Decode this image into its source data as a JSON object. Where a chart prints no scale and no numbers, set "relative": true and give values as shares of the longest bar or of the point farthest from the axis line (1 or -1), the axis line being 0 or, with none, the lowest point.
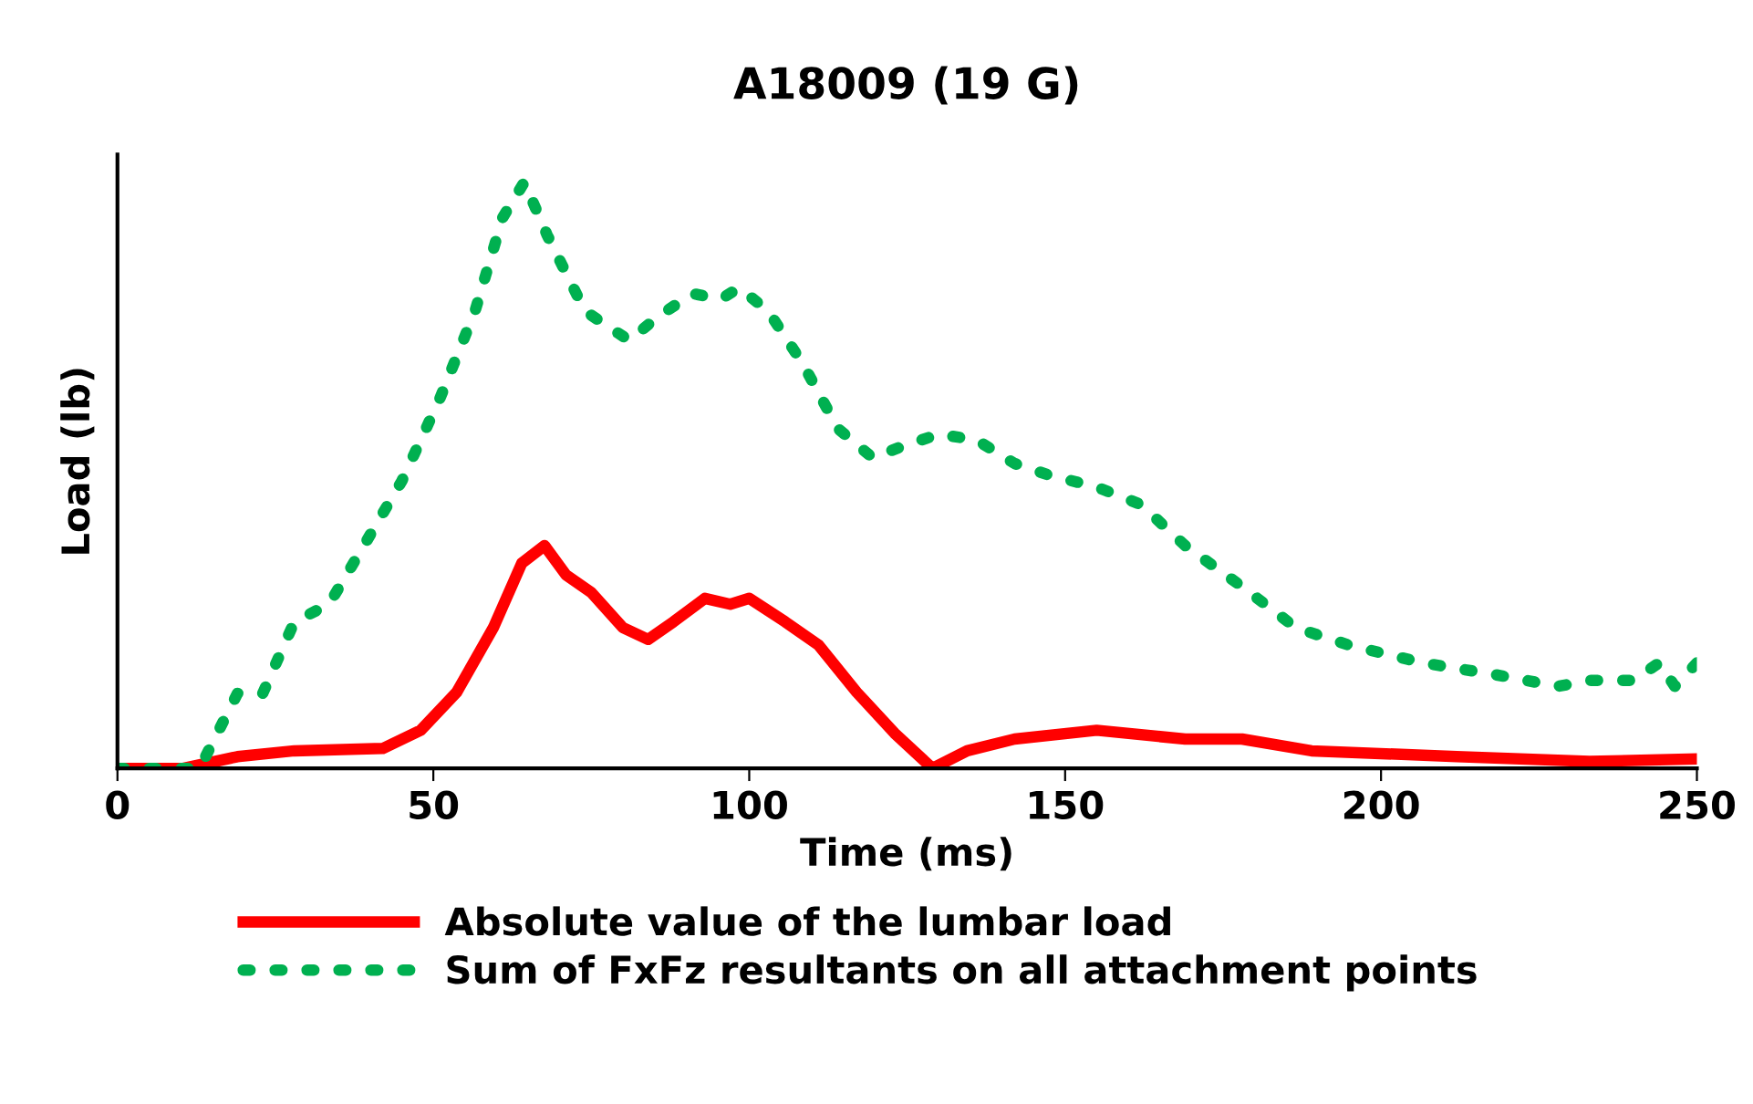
{
  "chart_data": {
    "type": "line",
    "title": "A18009 (19 G)",
    "xlabel": "Time (ms)",
    "ylabel": "Load (lb)",
    "relative": true,
    "xlim": [
      0,
      250
    ],
    "xticks": [
      0,
      50,
      100,
      150,
      200,
      250
    ],
    "legend": "bottom",
    "grid": false,
    "series": [
      {
        "name": "Absolute value of the lumbar load",
        "color": "#ff0000",
        "line_style": "solid",
        "x": [
          0,
          10.4,
          19,
          28,
          42,
          48,
          53.7,
          59.5,
          64,
          67.6,
          71,
          75,
          80,
          84,
          88,
          93,
          97,
          100,
          105.7,
          111,
          117,
          123,
          129,
          134.5,
          142,
          155,
          169,
          178,
          189,
          212,
          233,
          250
        ],
        "values": [
          0,
          0,
          0.02,
          0.03,
          0.034,
          0.065,
          0.13,
          0.24,
          0.35,
          0.38,
          0.33,
          0.3,
          0.24,
          0.22,
          0.25,
          0.29,
          0.28,
          0.29,
          0.25,
          0.21,
          0.13,
          0.06,
          0,
          0.03,
          0.05,
          0.065,
          0.05,
          0.05,
          0.03,
          0.02,
          0.012,
          0.016
        ]
      },
      {
        "name": "Sum of FxFz resultants on all attachment points",
        "color": "#00b050",
        "line_style": "dotted",
        "x": [
          0,
          13,
          19,
          23,
          28,
          33.5,
          39,
          45,
          51,
          56.6,
          61,
          64.4,
          68,
          74,
          81,
          85.5,
          91,
          95.5,
          98.4,
          103,
          108.5,
          114,
          119.5,
          124.4,
          130,
          136,
          142,
          147.5,
          155,
          162,
          169,
          178,
          186.5,
          195,
          206.6,
          218,
          228,
          233,
          240,
          244,
          246.5,
          250
        ],
        "values": [
          0,
          0,
          0.128,
          0.128,
          0.25,
          0.28,
          0.38,
          0.49,
          0.63,
          0.78,
          0.94,
          1.0,
          0.91,
          0.78,
          0.73,
          0.77,
          0.81,
          0.8,
          0.82,
          0.78,
          0.69,
          0.58,
          0.53,
          0.55,
          0.57,
          0.56,
          0.52,
          0.5,
          0.48,
          0.45,
          0.38,
          0.31,
          0.24,
          0.21,
          0.18,
          0.16,
          0.14,
          0.15,
          0.15,
          0.18,
          0.14,
          0.18
        ]
      }
    ]
  }
}
